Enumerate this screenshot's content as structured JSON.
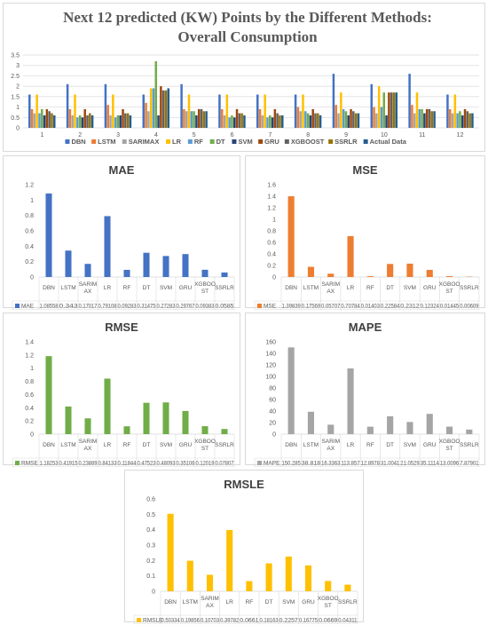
{
  "title_line1": "Next 12 predicted (KW) Points by the Different Methods:",
  "title_line2": "Overall Consumption",
  "chart_data": [
    {
      "type": "bar",
      "title": "Next 12 predicted (KW) Points by the Different Methods: Overall Consumption",
      "categories": [
        "1",
        "2",
        "3",
        "4",
        "5",
        "6",
        "7",
        "8",
        "9",
        "10",
        "11",
        "12"
      ],
      "yticks": [
        "0",
        "0.5",
        "1",
        "1.5",
        "2",
        "2.5",
        "3",
        "3.5"
      ],
      "ylim": [
        0,
        3.5
      ],
      "grid": true,
      "legend": "bottom",
      "series": [
        {
          "name": "DBN",
          "color": "#4472c4",
          "values": [
            1.6,
            2.1,
            2.1,
            1.6,
            2.1,
            1.6,
            1.6,
            1.6,
            2.6,
            2.1,
            2.6,
            1.6
          ]
        },
        {
          "name": "LSTM",
          "color": "#ed7d31",
          "values": [
            0.9,
            0.9,
            1.1,
            1.2,
            0.9,
            0.9,
            0.9,
            1.0,
            1.1,
            1.0,
            1.1,
            0.9
          ]
        },
        {
          "name": "SARIMAX",
          "color": "#a5a5a5",
          "values": [
            0.7,
            0.6,
            0.6,
            0.8,
            0.8,
            0.6,
            0.6,
            0.8,
            0.7,
            0.7,
            0.7,
            0.7
          ]
        },
        {
          "name": "LR",
          "color": "#ffc000",
          "values": [
            1.6,
            1.6,
            1.6,
            1.9,
            1.6,
            1.6,
            1.6,
            1.6,
            1.7,
            2.0,
            1.7,
            1.6
          ]
        },
        {
          "name": "RF",
          "color": "#5b9bd5",
          "values": [
            0.7,
            0.5,
            0.5,
            1.9,
            0.8,
            0.5,
            0.5,
            0.8,
            0.9,
            1.0,
            0.9,
            0.7
          ]
        },
        {
          "name": "DT",
          "color": "#70ad47",
          "values": [
            0.9,
            0.6,
            0.6,
            3.2,
            0.8,
            0.6,
            0.6,
            0.7,
            0.8,
            1.7,
            0.9,
            0.8
          ]
        },
        {
          "name": "SVM",
          "color": "#264478",
          "values": [
            0.6,
            0.5,
            0.6,
            0.6,
            0.6,
            0.5,
            0.5,
            0.6,
            0.6,
            0.6,
            0.7,
            0.6
          ]
        },
        {
          "name": "GRU",
          "color": "#9e480e",
          "values": [
            0.9,
            0.9,
            0.9,
            2.0,
            0.9,
            0.9,
            0.9,
            0.9,
            0.9,
            1.7,
            0.9,
            0.9
          ]
        },
        {
          "name": "XGBOOST",
          "color": "#636363",
          "values": [
            0.8,
            0.6,
            0.7,
            1.8,
            0.9,
            0.7,
            0.7,
            0.7,
            0.8,
            1.7,
            0.9,
            0.8
          ]
        },
        {
          "name": "SSRLR",
          "color": "#997300",
          "values": [
            0.7,
            0.7,
            0.7,
            1.8,
            0.8,
            0.7,
            0.6,
            0.7,
            0.7,
            1.7,
            0.8,
            0.7
          ]
        },
        {
          "name": "Actual Data",
          "color": "#255e91",
          "values": [
            0.6,
            0.6,
            0.6,
            1.9,
            0.8,
            0.6,
            0.6,
            0.6,
            0.7,
            1.7,
            0.8,
            0.7
          ]
        }
      ]
    },
    {
      "type": "bar",
      "title": "MAE",
      "color": "#4472c4",
      "categories": [
        "DBN",
        "LSTM",
        "SARIMAX",
        "LR",
        "RF",
        "DT",
        "SVM",
        "GRU",
        "XGBOOST",
        "SSRLR"
      ],
      "category_labels": [
        [
          "DBN"
        ],
        [
          "LSTM"
        ],
        [
          "SARIM",
          "AX"
        ],
        [
          "LR"
        ],
        [
          "RF"
        ],
        [
          "DT"
        ],
        [
          "SVM"
        ],
        [
          "GRU"
        ],
        [
          "XGBOO",
          "ST"
        ],
        [
          "SSRLR"
        ]
      ],
      "yticks": [
        "0",
        "0.2",
        "0.4",
        "0.6",
        "0.8",
        "1",
        "1.2"
      ],
      "ylim": [
        0,
        1.2
      ],
      "legend_name": "MAE",
      "values": [
        1.08558,
        0.343,
        0.17017,
        0.79108,
        0.09283,
        0.31475,
        0.27283,
        0.29767,
        0.09383,
        0.0585
      ],
      "value_labels": [
        "1.08558",
        "0.343",
        "0.17017",
        "0.79108",
        "0.09283",
        "0.31475",
        "0.27283",
        "0.29767",
        "0.09383",
        "0.0585"
      ]
    },
    {
      "type": "bar",
      "title": "MSE",
      "color": "#ed7d31",
      "categories": [
        "DBN",
        "LSTM",
        "SARIMAX",
        "LR",
        "RF",
        "DT",
        "SVM",
        "GRU",
        "XGBOOST",
        "SSRLR"
      ],
      "category_labels": [
        [
          "DBN"
        ],
        [
          "LSTM"
        ],
        [
          "SARIM",
          "AX"
        ],
        [
          "LR"
        ],
        [
          "RF"
        ],
        [
          "DT"
        ],
        [
          "SVM"
        ],
        [
          "GRU"
        ],
        [
          "XGBOO",
          "ST"
        ],
        [
          "SSRLR"
        ]
      ],
      "yticks": [
        "0",
        "0.2",
        "0.4",
        "0.6",
        "0.8",
        "1",
        "1.2",
        "1.4",
        "1.6"
      ],
      "ylim": [
        0,
        1.6
      ],
      "legend_name": "MSE",
      "values": [
        1.39839,
        0.17569,
        0.05707,
        0.70784,
        0.01403,
        0.22584,
        0.2312,
        0.12324,
        0.01445,
        0.00609
      ],
      "value_labels": [
        "1.39839",
        "0.17569",
        "0.05707",
        "0.70784",
        "0.01403",
        "0.22584",
        "0.2312",
        "0.12324",
        "0.01445",
        "0.00609"
      ]
    },
    {
      "type": "bar",
      "title": "RMSE",
      "color": "#70ad47",
      "categories": [
        "DBN",
        "LSTM",
        "SARIMAX",
        "LR",
        "RF",
        "DT",
        "SVM",
        "GRU",
        "XGBOOST",
        "SSRLR"
      ],
      "category_labels": [
        [
          "DBN"
        ],
        [
          "LSTM"
        ],
        [
          "SARIM",
          "AX"
        ],
        [
          "LR"
        ],
        [
          "RF"
        ],
        [
          "DT"
        ],
        [
          "SVM"
        ],
        [
          "GRU"
        ],
        [
          "XGBOO",
          "ST"
        ],
        [
          "SSRLR"
        ]
      ],
      "yticks": [
        "0",
        "0.2",
        "0.4",
        "0.6",
        "0.8",
        "1",
        "1.2",
        "1.4"
      ],
      "ylim": [
        0,
        1.4
      ],
      "legend_name": "RMSE",
      "values": [
        1.18253,
        0.41915,
        0.23889,
        0.84133,
        0.11844,
        0.47523,
        0.48093,
        0.35106,
        0.12019,
        0.07807
      ],
      "value_labels": [
        "1.18253",
        "0.41915",
        "0.23889",
        "0.84133",
        "0.11844",
        "0.47523",
        "0.48093",
        "0.35106",
        "0.12019",
        "0.07807"
      ]
    },
    {
      "type": "bar",
      "title": "MAPE",
      "color": "#a5a5a5",
      "categories": [
        "DBN",
        "LSTM",
        "SARIMAX",
        "LR",
        "RF",
        "DT",
        "SVM",
        "GRU",
        "XGBOOST",
        "SSRLR"
      ],
      "category_labels": [
        [
          "DBN"
        ],
        [
          "LSTM"
        ],
        [
          "SARIM",
          "AX"
        ],
        [
          "LR"
        ],
        [
          "RF"
        ],
        [
          "DT"
        ],
        [
          "SVM"
        ],
        [
          "GRU"
        ],
        [
          "XGBOO",
          "ST"
        ],
        [
          "SSRLR"
        ]
      ],
      "yticks": [
        "0",
        "20",
        "40",
        "60",
        "80",
        "100",
        "120",
        "140",
        "160"
      ],
      "ylim": [
        0,
        160
      ],
      "legend_name": "MAPE",
      "values": [
        150.285,
        38.818,
        16.3363,
        113.857,
        12.8978,
        31.0041,
        21.0529,
        35.1114,
        13.0096,
        7.87901
      ],
      "value_labels": [
        "150.285",
        "38.818",
        "16.3363",
        "113.857",
        "12.8978",
        "31.0041",
        "21.0529",
        "35.1114",
        "13.0096",
        "7.87901"
      ]
    },
    {
      "type": "bar",
      "title": "RMSLE",
      "color": "#ffc000",
      "categories": [
        "DBN",
        "LSTM",
        "SARIMAX",
        "LR",
        "RF",
        "DT",
        "SVM",
        "GRU",
        "XGBOOST",
        "SSRLR"
      ],
      "category_labels": [
        [
          "DBN"
        ],
        [
          "LSTM"
        ],
        [
          "SARIM",
          "AX"
        ],
        [
          "LR"
        ],
        [
          "RF"
        ],
        [
          "DT"
        ],
        [
          "SVM"
        ],
        [
          "GRU"
        ],
        [
          "XGBOO",
          "ST"
        ],
        [
          "SSRLR"
        ]
      ],
      "yticks": [
        "0",
        "0.1",
        "0.2",
        "0.3",
        "0.4",
        "0.5",
        "0.6"
      ],
      "ylim": [
        0,
        0.6
      ],
      "legend_name": "RMSLE",
      "values": [
        0.50334,
        0.19856,
        0.10703,
        0.39782,
        0.0661,
        0.18163,
        0.2257,
        0.16775,
        0.0669,
        0.04311
      ],
      "value_labels": [
        "0.50334",
        "0.19856",
        "0.10703",
        "0.39782",
        "0.0661",
        "0.18163",
        "0.2257",
        "0.16775",
        "0.0669",
        "0.04311"
      ]
    }
  ]
}
